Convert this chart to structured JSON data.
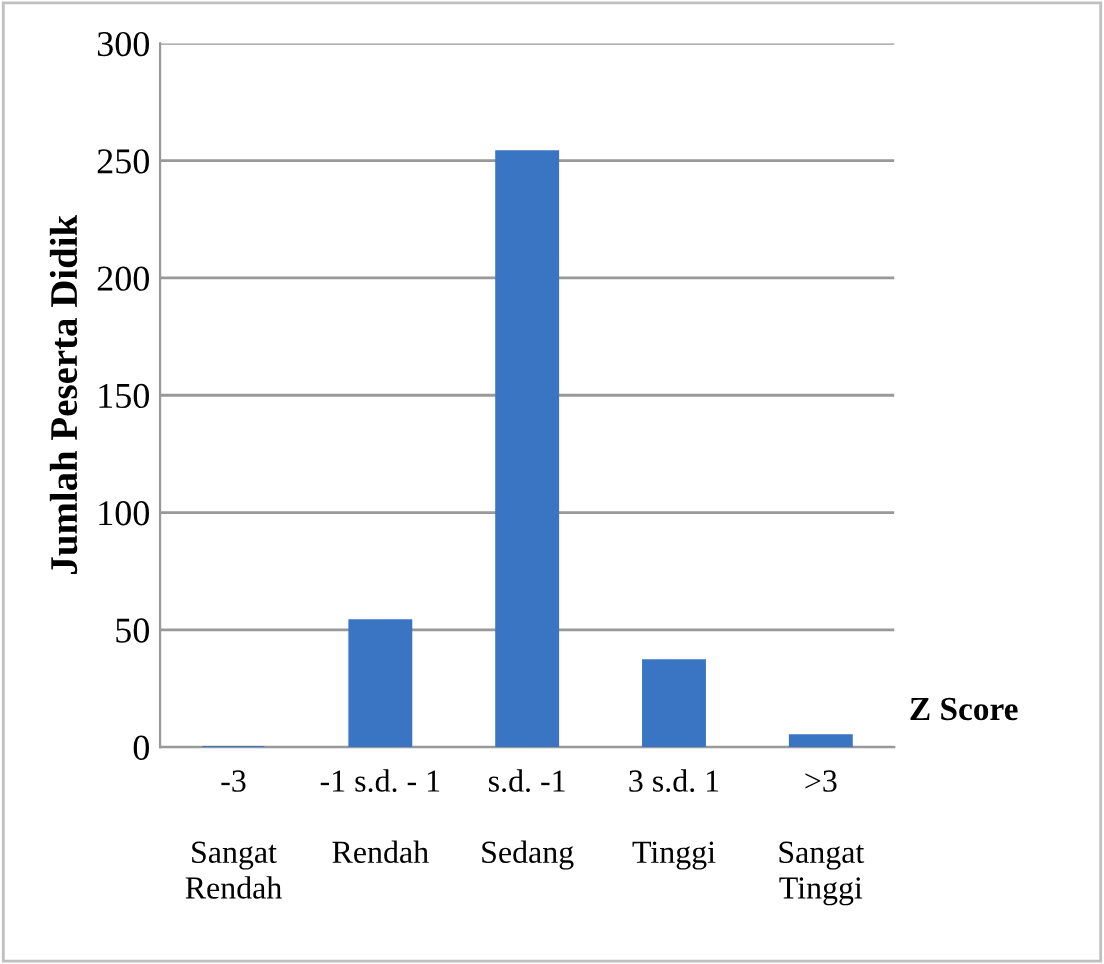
{
  "chart_data": {
    "type": "bar",
    "categories": [
      "-3\n\nSangat\nRendah",
      "-1 s.d. - 1\n\nRendah",
      "s.d. -1\n\nSedang",
      "3 s.d. 1\n\nTinggi",
      ">3\n\nSangat\nTinggi"
    ],
    "values": [
      0,
      54,
      254,
      37,
      5
    ],
    "color": "#3a75c4",
    "ylabel": "Jumlah Peserta Didik",
    "xlabel": "Z Score",
    "ylim": [
      0,
      300
    ],
    "yticks": [
      0,
      50,
      100,
      150,
      200,
      250,
      300
    ],
    "grid": "y"
  }
}
